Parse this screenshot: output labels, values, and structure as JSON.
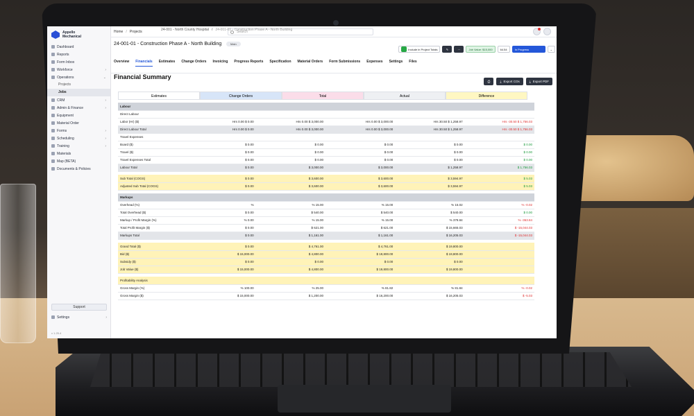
{
  "app": {
    "brand_line1": "Appello",
    "brand_line2": "Mechanical",
    "version": "v 1.25.4"
  },
  "sidebar": {
    "items": [
      {
        "label": "Dashboard",
        "icon": "home-icon",
        "chev": ""
      },
      {
        "label": "Reports",
        "icon": "chart-icon",
        "chev": ""
      },
      {
        "label": "Form Inbox",
        "icon": "inbox-icon",
        "chev": ""
      },
      {
        "label": "Workforce",
        "icon": "people-icon",
        "chev": "›"
      },
      {
        "label": "Operations",
        "icon": "briefcase-icon",
        "chev": "⌄"
      }
    ],
    "sub_items": [
      {
        "label": "Projects",
        "active": false
      },
      {
        "label": "Jobs",
        "active": true
      }
    ],
    "items2": [
      {
        "label": "CRM",
        "icon": "crm-icon",
        "chev": "›"
      },
      {
        "label": "Admin & Finance",
        "icon": "finance-icon",
        "chev": "›"
      },
      {
        "label": "Equipment",
        "icon": "tool-icon",
        "chev": ""
      },
      {
        "label": "Material Order",
        "icon": "box-icon",
        "chev": ""
      },
      {
        "label": "Forms",
        "icon": "form-icon",
        "chev": "›"
      },
      {
        "label": "Scheduling",
        "icon": "calendar-icon",
        "chev": "›"
      },
      {
        "label": "Training",
        "icon": "training-icon",
        "chev": "›"
      },
      {
        "label": "Materials",
        "icon": "materials-icon",
        "chev": ""
      },
      {
        "label": "Map (BETA)",
        "icon": "map-icon",
        "chev": ""
      },
      {
        "label": "Documents & Policies",
        "icon": "doc-icon",
        "chev": ""
      }
    ],
    "support": "Support",
    "settings": "Settings"
  },
  "topbar": {
    "crumbs": [
      "Home",
      "Projects",
      "24-001 - North County Hospital",
      "24-001-01 - Construction Phase A - North Building"
    ],
    "search_placeholder": "Search"
  },
  "job": {
    "title": "24-001-01 - Construction Phase A - North Building",
    "pill": "Main",
    "include_label": "Include in Project Totals",
    "job_value": "Job Value: $15,000",
    "percent": "64.54",
    "status": "In Progress"
  },
  "tabs": [
    "Overview",
    "Financials",
    "Estimates",
    "Change Orders",
    "Invoicing",
    "Progress Reports",
    "Specification",
    "Material Orders",
    "Form Submissions",
    "Expenses",
    "Settings",
    "Files"
  ],
  "active_tab": "Financials",
  "financial": {
    "title": "Financial Summary",
    "export_cos": "Export COs",
    "export_pdf": "Export PDF",
    "columns": [
      "Estimates",
      "Change Orders",
      "Total",
      "Actual",
      "Difference"
    ],
    "rows": [
      {
        "type": "section",
        "label": "Labour",
        "cells": [
          "",
          "",
          "",
          "",
          ""
        ]
      },
      {
        "type": "plain",
        "label": "Direct Labour",
        "cells": [
          "",
          "",
          "",
          "",
          ""
        ]
      },
      {
        "type": "plain",
        "label": "   Labor (Hr) ($)",
        "cells": [
          "Hrs   0.00 $   0.00",
          "Hrs   0.00 $   3,000.00",
          "Hrs   0.00 $   3,000.00",
          "Hrs   30.50 $   1,258.97",
          "Hrs   -30.50 $   1,756.03"
        ]
      },
      {
        "type": "grey",
        "label": "Direct Labour Total",
        "cells": [
          "Hrs   0.00 $   0.00",
          "Hrs   0.00 $   3,000.00",
          "Hrs   0.00 $   3,000.00",
          "Hrs   30.50 $   1,258.97",
          "Hrs   -30.50 $   1,756.03"
        ]
      },
      {
        "type": "plain",
        "label": "Travel Expenses",
        "cells": [
          "",
          "",
          "",
          "",
          ""
        ]
      },
      {
        "type": "plain",
        "label": "   Board ($)",
        "cells": [
          "$   0.00",
          "$   0.00",
          "$   0.00",
          "$   0.00",
          "$   0.00"
        ]
      },
      {
        "type": "plain",
        "label": "   Travel ($)",
        "cells": [
          "$   0.00",
          "$   0.00",
          "$   0.00",
          "$   0.00",
          "$   0.00"
        ]
      },
      {
        "type": "plain",
        "label": "Travel Expenses Total",
        "cells": [
          "$   0.00",
          "$   0.00",
          "$   0.00",
          "$   0.00",
          "$   0.00"
        ]
      },
      {
        "type": "grey",
        "label": "Labour Total",
        "cells": [
          "$   0.00",
          "$   3,000.00",
          "$   3,000.00",
          "$   1,258.97",
          "$   1,756.03"
        ]
      },
      {
        "type": "gap",
        "label": "",
        "cells": [
          "",
          "",
          "",
          "",
          ""
        ]
      },
      {
        "type": "yellow",
        "label": "Sub Total (COGS)",
        "cells": [
          "$   0.00",
          "$   3,600.00",
          "$   3,600.00",
          "$   3,594.97",
          "$   5.03"
        ]
      },
      {
        "type": "yellow",
        "label": "Adjusted Sub Total (COGS)",
        "cells": [
          "$   0.00",
          "$   3,600.00",
          "$   3,600.00",
          "$   3,594.97",
          "$   5.03"
        ]
      },
      {
        "type": "gap",
        "label": "",
        "cells": [
          "",
          "",
          "",
          "",
          ""
        ]
      },
      {
        "type": "section",
        "label": "Markups",
        "cells": [
          "",
          "",
          "",
          "",
          ""
        ]
      },
      {
        "type": "plain",
        "label": "Overhead (%)",
        "cells": [
          "%",
          "%   15.00",
          "%   15.00",
          "%   15.02",
          "%   -0.02"
        ]
      },
      {
        "type": "plain",
        "label": "Total Overhead ($)",
        "cells": [
          "$   0.00",
          "$   540.00",
          "$   540.00",
          "$   540.00",
          "$   0.00"
        ]
      },
      {
        "type": "plain",
        "label": "Markup / Profit Margin (%)",
        "cells": [
          "%   0.00",
          "%   15.00",
          "%   15.00",
          "%   378.84",
          "%   -363.84"
        ]
      },
      {
        "type": "plain",
        "label": "Total Profit Margin ($)",
        "cells": [
          "$   0.00",
          "$   621.00",
          "$   621.00",
          "$   15,665.03",
          "$   -15,044.03"
        ]
      },
      {
        "type": "grey",
        "label": "Markups Total",
        "cells": [
          "$   0.00",
          "$   1,161.00",
          "$   1,161.00",
          "$   16,205.03",
          "$   -15,044.03"
        ]
      },
      {
        "type": "gap",
        "label": "",
        "cells": [
          "",
          "",
          "",
          "",
          ""
        ]
      },
      {
        "type": "yellow",
        "label": "Grand Total ($)",
        "cells": [
          "$   0.00",
          "$   4,761.00",
          "$   4,761.00",
          "$   19,800.00",
          ""
        ]
      },
      {
        "type": "yellow",
        "label": "Bid ($)",
        "cells": [
          "$   15,000.00",
          "$   4,800.00",
          "$   19,800.00",
          "$   19,800.00",
          ""
        ]
      },
      {
        "type": "yellow",
        "label": "Subsidy ($)",
        "cells": [
          "$   0.00",
          "$   0.00",
          "$   0.00",
          "$   0.00",
          ""
        ]
      },
      {
        "type": "yellow",
        "label": "Job Value ($)",
        "cells": [
          "$   15,000.00",
          "$   4,800.00",
          "$   19,800.00",
          "$   19,800.00",
          ""
        ]
      },
      {
        "type": "gap",
        "label": "",
        "cells": [
          "",
          "",
          "",
          "",
          ""
        ]
      },
      {
        "type": "yellow",
        "label": "Profitability Analysis",
        "cells": [
          "",
          "",
          "",
          "",
          ""
        ]
      },
      {
        "type": "plain",
        "label": "Gross Margin (%)",
        "cells": [
          "%   100.00",
          "%   25.00",
          "%   81.82",
          "%   81.84",
          "%   -0.02"
        ]
      },
      {
        "type": "plain",
        "label": "Gross Margin ($)",
        "cells": [
          "$   15,000.00",
          "$   1,200.00",
          "$   16,200.00",
          "$   16,205.03",
          "$   -5.03"
        ]
      }
    ]
  },
  "colors": {
    "accent": "#2457d9",
    "negative": "#e03030",
    "positive": "#1a9a3b",
    "highlight": "#fff3b8"
  }
}
